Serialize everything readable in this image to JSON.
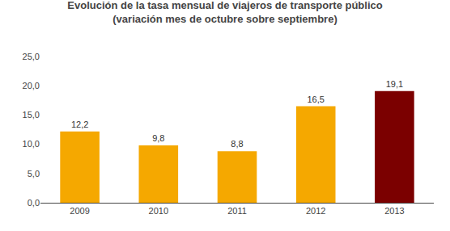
{
  "chart_data": {
    "type": "bar",
    "title": "Evolución de la tasa mensual de viajeros de transporte público",
    "subtitle": "(variación mes de octubre sobre septiembre)",
    "categories": [
      "2009",
      "2010",
      "2011",
      "2012",
      "2013"
    ],
    "values": [
      12.2,
      9.8,
      8.8,
      16.5,
      19.1
    ],
    "value_labels": [
      "12,2",
      "9,8",
      "8,8",
      "16,5",
      "19,1"
    ],
    "colors": [
      "#F5A800",
      "#F5A800",
      "#F5A800",
      "#F5A800",
      "#7B0000"
    ],
    "ylim": [
      0,
      25
    ],
    "yticks": [
      {
        "value": 0,
        "label": "0,0"
      },
      {
        "value": 5,
        "label": "5,0"
      },
      {
        "value": 10,
        "label": "10,0"
      },
      {
        "value": 15,
        "label": "15,0"
      },
      {
        "value": 20,
        "label": "20,0"
      },
      {
        "value": 25,
        "label": "25,0"
      }
    ],
    "grid": false,
    "data_labels": true
  }
}
